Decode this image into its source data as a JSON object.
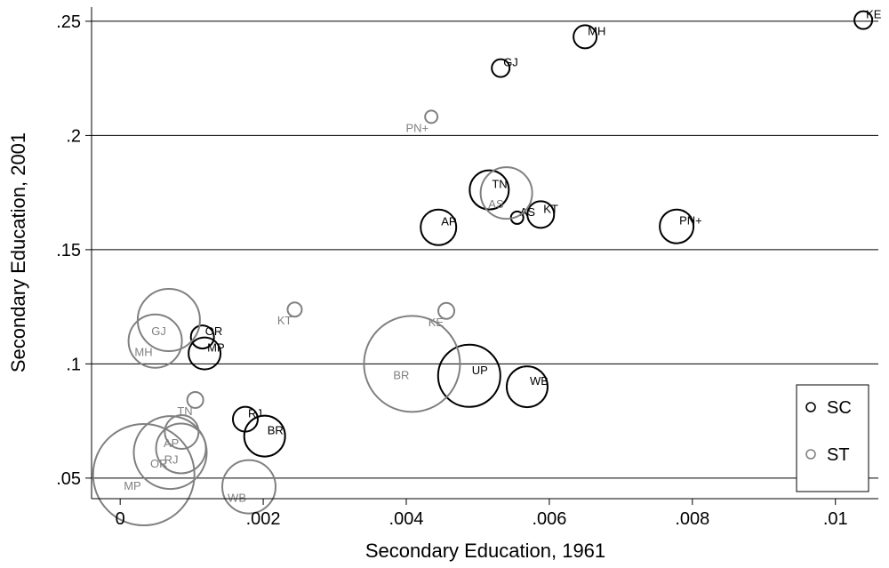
{
  "chart_data": {
    "type": "scatter",
    "xlabel": "Secondary Education, 1961",
    "ylabel": "Secondary Education, 2001",
    "xlim": [
      -0.0004,
      0.0106
    ],
    "ylim": [
      0.041,
      0.2562
    ],
    "x_ticks": [
      {
        "value": 0,
        "label": "0"
      },
      {
        "value": 0.002,
        "label": ".002"
      },
      {
        "value": 0.004,
        "label": ".004"
      },
      {
        "value": 0.006,
        "label": ".006"
      },
      {
        "value": 0.008,
        "label": ".008"
      },
      {
        "value": 0.01,
        "label": ".01"
      }
    ],
    "y_ticks": [
      {
        "value": 0.05,
        "label": ".05"
      },
      {
        "value": 0.1,
        "label": ".1"
      },
      {
        "value": 0.15,
        "label": ".15"
      },
      {
        "value": 0.2,
        "label": ".2"
      },
      {
        "value": 0.25,
        "label": ".25"
      }
    ],
    "grid": "horizontal",
    "legend_position": "bottom-right",
    "series": [
      {
        "name": "SC",
        "color": "#000000",
        "points": [
          {
            "label": "KE",
            "x": 0.01039,
            "y": 0.2505,
            "size": 10
          },
          {
            "label": "MH",
            "x": 0.0065,
            "y": 0.2432,
            "size": 13
          },
          {
            "label": "GJ",
            "x": 0.00532,
            "y": 0.2295,
            "size": 10
          },
          {
            "label": "TN",
            "x": 0.00516,
            "y": 0.1762,
            "size": 22
          },
          {
            "label": "AS",
            "x": 0.00555,
            "y": 0.164,
            "size": 7
          },
          {
            "label": "KT",
            "x": 0.00588,
            "y": 0.1654,
            "size": 15
          },
          {
            "label": "AP",
            "x": 0.00445,
            "y": 0.1598,
            "size": 20
          },
          {
            "label": "PN+",
            "x": 0.00778,
            "y": 0.1602,
            "size": 19
          },
          {
            "label": "OR",
            "x": 0.00115,
            "y": 0.1118,
            "size": 13
          },
          {
            "label": "MP",
            "x": 0.00118,
            "y": 0.1046,
            "size": 18
          },
          {
            "label": "UP",
            "x": 0.00488,
            "y": 0.0948,
            "size": 35
          },
          {
            "label": "WB",
            "x": 0.00569,
            "y": 0.09,
            "size": 23
          },
          {
            "label": "RJ",
            "x": 0.00175,
            "y": 0.0758,
            "size": 14
          },
          {
            "label": "BR",
            "x": 0.00202,
            "y": 0.0684,
            "size": 23
          }
        ]
      },
      {
        "name": "ST",
        "color": "#808080",
        "points": [
          {
            "label": "PN+",
            "x": 0.00435,
            "y": 0.2082,
            "size": 7
          },
          {
            "label": "AS",
            "x": 0.0054,
            "y": 0.1748,
            "size": 29
          },
          {
            "label": "KT",
            "x": 0.00244,
            "y": 0.1238,
            "size": 8
          },
          {
            "label": "KE",
            "x": 0.00456,
            "y": 0.1232,
            "size": 9
          },
          {
            "label": "GJ",
            "x": 0.00068,
            "y": 0.1192,
            "size": 35
          },
          {
            "label": "MH",
            "x": 0.00049,
            "y": 0.11,
            "size": 30
          },
          {
            "label": "BR",
            "x": 0.00408,
            "y": 0.1,
            "size": 54
          },
          {
            "label": "TN",
            "x": 0.00105,
            "y": 0.0842,
            "size": 9
          },
          {
            "label": "AP",
            "x": 0.00086,
            "y": 0.0702,
            "size": 19
          },
          {
            "label": "RJ",
            "x": 0.00085,
            "y": 0.063,
            "size": 28
          },
          {
            "label": "OR",
            "x": 0.0007,
            "y": 0.0612,
            "size": 41
          },
          {
            "label": "MP",
            "x": 0.00033,
            "y": 0.0515,
            "size": 57
          },
          {
            "label": "WB",
            "x": 0.0018,
            "y": 0.0462,
            "size": 30
          }
        ]
      }
    ]
  }
}
